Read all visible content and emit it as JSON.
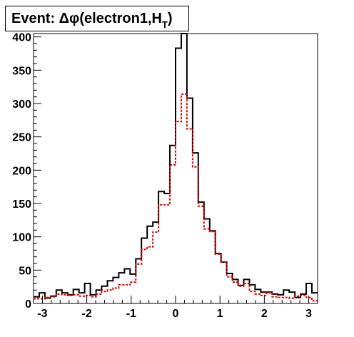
{
  "chart_data": {
    "type": "histogram",
    "title": "Event: Δφ(electron1,",
    "title_sym": "H",
    "title_sub": "T",
    "title_close": ")",
    "xlim": [
      -3.2,
      3.2
    ],
    "ylim": [
      0,
      405
    ],
    "bin_width": 0.128,
    "x_ticks": [
      -3,
      -2,
      -1,
      0,
      1,
      2,
      3
    ],
    "x_tick_labels": [
      "-3",
      "-2",
      "-1",
      "0",
      "1",
      "2",
      "3"
    ],
    "y_ticks": [
      0,
      50,
      100,
      150,
      200,
      250,
      300,
      350,
      400
    ],
    "y_tick_labels": [
      "0",
      "50",
      "100",
      "150",
      "200",
      "250",
      "300",
      "350",
      "400"
    ],
    "series": [
      {
        "color": "#000000",
        "style": "solid",
        "values": [
          10,
          16,
          8,
          11,
          20,
          16,
          13,
          21,
          16,
          30,
          13,
          20,
          26,
          34,
          39,
          46,
          52,
          44,
          67,
          98,
          116,
          122,
          168,
          165,
          237,
          383,
          405,
          308,
          226,
          152,
          127,
          109,
          75,
          62,
          45,
          36,
          27,
          36,
          28,
          21,
          17,
          17,
          14,
          13,
          20,
          17,
          9,
          14,
          30,
          16
        ]
      },
      {
        "color": "#e00000",
        "style": "dashed",
        "values": [
          7,
          7,
          9,
          10,
          14,
          13,
          12,
          13,
          11,
          12,
          10,
          14,
          18,
          20,
          23,
          28,
          28,
          32,
          59,
          81,
          85,
          107,
          148,
          148,
          208,
          273,
          314,
          262,
          205,
          146,
          112,
          108,
          74,
          62,
          40,
          32,
          26,
          30,
          18,
          14,
          12,
          16,
          10,
          9,
          9,
          8,
          11,
          12,
          9,
          4
        ]
      }
    ]
  }
}
